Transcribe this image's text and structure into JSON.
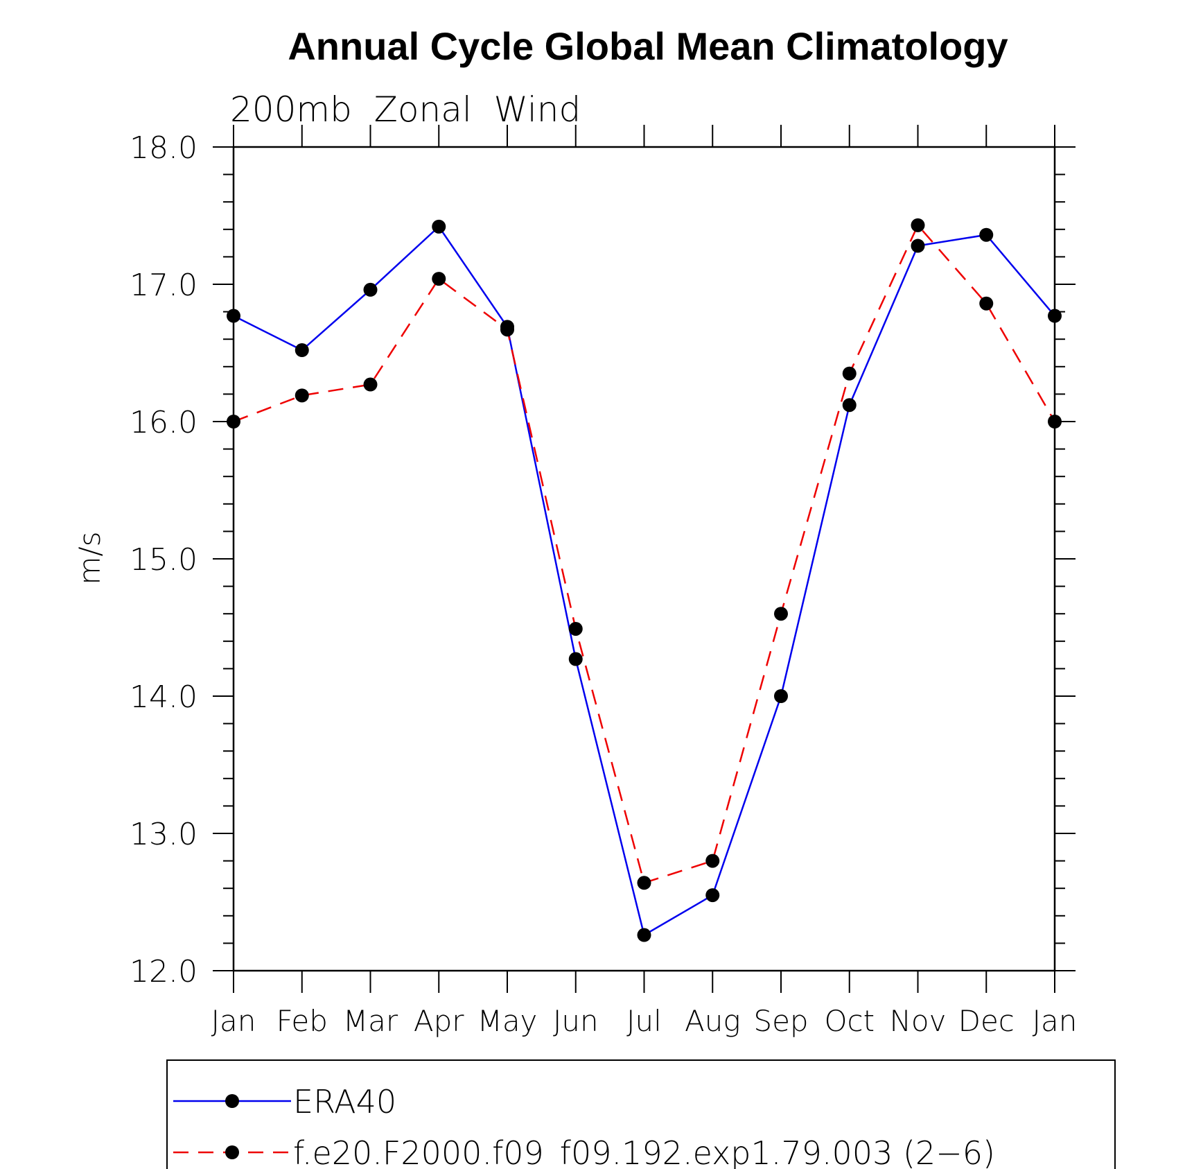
{
  "chart_data": {
    "type": "line",
    "title": "Annual Cycle Global Mean Climatology",
    "subtitle": "200mb  Zonal  Wind",
    "xlabel": "",
    "ylabel": "m/s",
    "categories": [
      "Jan",
      "Feb",
      "Mar",
      "Apr",
      "May",
      "Jun",
      "Jul",
      "Aug",
      "Sep",
      "Oct",
      "Nov",
      "Dec",
      "Jan"
    ],
    "ylim": [
      12.0,
      18.0
    ],
    "yticks": [
      "12.0",
      "13.0",
      "14.0",
      "15.0",
      "16.0",
      "17.0",
      "18.0"
    ],
    "grid": false,
    "legend_position": "bottom",
    "series": [
      {
        "name": "ERA40",
        "color": "#0000ee",
        "style": "solid",
        "marker": "filled-circle",
        "values": [
          16.77,
          16.52,
          16.96,
          17.42,
          16.69,
          14.27,
          12.26,
          12.55,
          14.0,
          16.12,
          17.28,
          17.36,
          16.77
        ]
      },
      {
        "name": "f.e20.F2000.f09_f09.192.exp1.79.003 (2−6)",
        "color": "#ee0000",
        "style": "dashed",
        "marker": "filled-circle",
        "values": [
          16.0,
          16.19,
          16.27,
          17.04,
          16.67,
          14.49,
          12.64,
          12.8,
          14.6,
          16.35,
          17.43,
          16.86,
          16.0
        ]
      }
    ]
  }
}
